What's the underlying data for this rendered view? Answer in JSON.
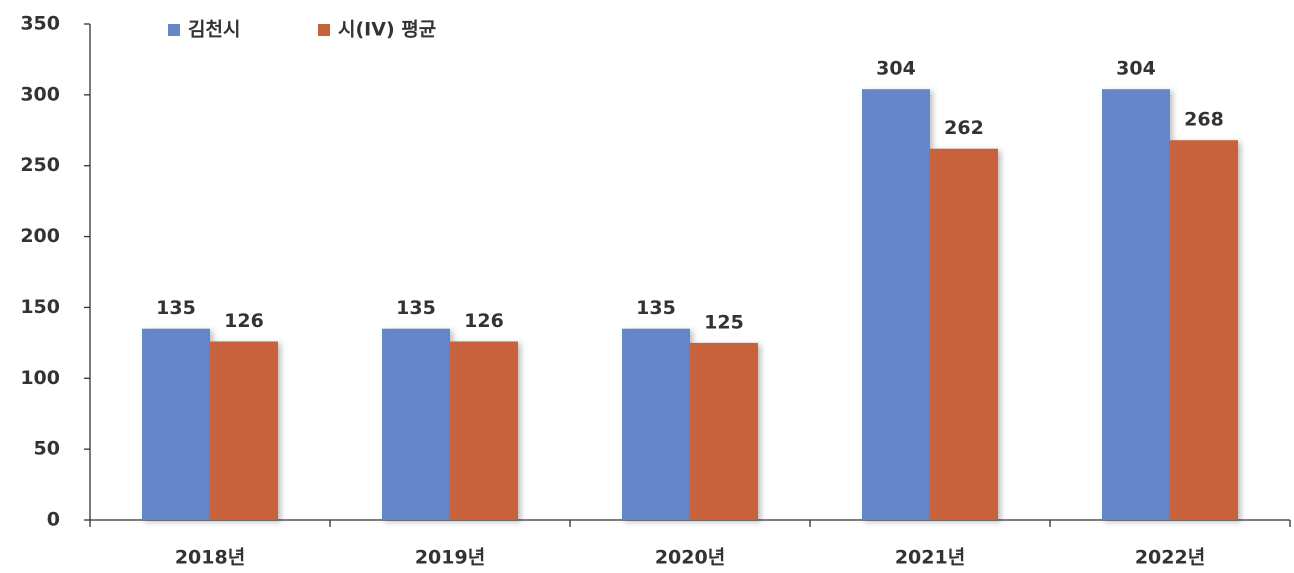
{
  "chart_data": {
    "type": "bar",
    "categories": [
      "2018년",
      "2019년",
      "2020년",
      "2021년",
      "2022년"
    ],
    "series": [
      {
        "name": "김천시",
        "color": "#6586c8",
        "values": [
          135,
          135,
          135,
          304,
          304
        ]
      },
      {
        "name": "시(IV) 평균",
        "color": "#c8623c",
        "values": [
          126,
          126,
          125,
          262,
          268
        ]
      }
    ],
    "ylim": [
      0,
      350
    ],
    "yticks": [
      0,
      50,
      100,
      150,
      200,
      250,
      300,
      350
    ],
    "legend": "top-left",
    "grid": false
  }
}
